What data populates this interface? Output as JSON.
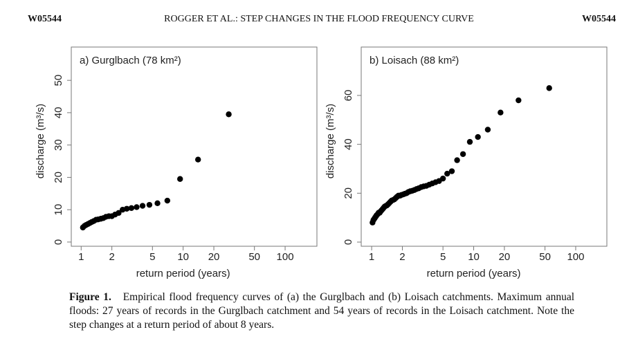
{
  "header": {
    "left": "W05544",
    "center": "ROGGER ET AL.: STEP CHANGES IN THE FLOOD FREQUENCY CURVE",
    "right": "W05544"
  },
  "caption": {
    "label": "Figure 1.",
    "text": "Empirical flood frequency curves of (a) the Gurglbach and (b) Loisach catchments. Maximum annual floods: 27 years of records in the Gurglbach catchment and 54 years of records in the Loisach catchment. Note the step changes at a return period of about 8 years."
  },
  "chart_data": [
    {
      "type": "scatter",
      "title": "a) Gurglbach (78 km²)",
      "xlabel": "return period (years)",
      "ylabel": "discharge (m³/s)",
      "log_x": true,
      "color": "#000000",
      "x": [
        28,
        14,
        9.33,
        7,
        5.6,
        4.67,
        4,
        3.5,
        3.11,
        2.8,
        2.55,
        2.33,
        2.15,
        2,
        1.87,
        1.75,
        1.65,
        1.56,
        1.47,
        1.4,
        1.33,
        1.27,
        1.22,
        1.17,
        1.12,
        1.08,
        1.04
      ],
      "values": [
        39.5,
        25.5,
        19.5,
        12.8,
        12,
        11.5,
        11.2,
        10.8,
        10.5,
        10.3,
        10,
        9,
        8.5,
        8,
        8,
        7.8,
        7.4,
        7.2,
        7,
        6.9,
        6.5,
        6.2,
        5.9,
        5.6,
        5.3,
        5,
        4.5
      ],
      "xlim": [
        0.8,
        205
      ],
      "ylim": [
        -1.3,
        60.3
      ],
      "xticks": [
        1,
        2,
        5,
        10,
        20,
        50,
        100
      ],
      "yticks": [
        0,
        10,
        20,
        30,
        40,
        50
      ]
    },
    {
      "type": "scatter",
      "title": "b) Loisach (88 km²)",
      "xlabel": "return period (years)",
      "ylabel": "discharge (m³/s)",
      "log_x": true,
      "color": "#000000",
      "x": [
        55,
        27.5,
        18.33,
        13.75,
        11,
        9.17,
        7.86,
        6.88,
        6.11,
        5.5,
        5,
        4.58,
        4.23,
        3.93,
        3.67,
        3.44,
        3.24,
        3.06,
        2.89,
        2.75,
        2.62,
        2.5,
        2.39,
        2.29,
        2.2,
        2.12,
        2.04,
        1.96,
        1.9,
        1.83,
        1.77,
        1.72,
        1.67,
        1.62,
        1.57,
        1.53,
        1.49,
        1.45,
        1.41,
        1.375,
        1.34,
        1.31,
        1.28,
        1.25,
        1.22,
        1.2,
        1.17,
        1.15,
        1.12,
        1.1,
        1.08,
        1.06,
        1.04,
        1.02
      ],
      "values": [
        63,
        58,
        53,
        46,
        43,
        41,
        36,
        33.5,
        29,
        28,
        26,
        25,
        24.5,
        24,
        23.5,
        23,
        22.8,
        22.5,
        22,
        21.7,
        21.3,
        21,
        20.8,
        20.5,
        20,
        19.8,
        19.5,
        19.3,
        19,
        19,
        18.5,
        18,
        17.5,
        17.2,
        17,
        16.5,
        16,
        15.5,
        15,
        14.8,
        14.5,
        14,
        13.5,
        13,
        12.5,
        12,
        12,
        11.5,
        11,
        10.5,
        10,
        9.5,
        9,
        8
      ],
      "xlim": [
        0.79,
        202
      ],
      "ylim": [
        -1.7,
        79.8
      ],
      "xticks": [
        1,
        2,
        5,
        10,
        20,
        50,
        100
      ],
      "yticks": [
        0,
        20,
        40,
        60
      ]
    }
  ]
}
